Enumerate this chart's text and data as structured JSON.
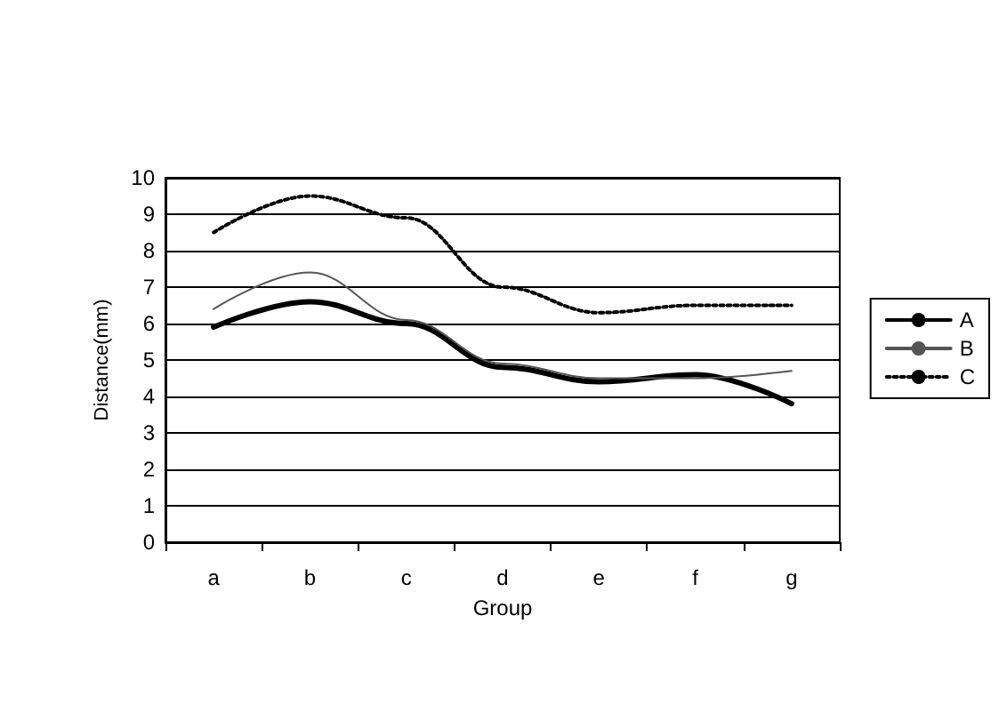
{
  "chart_data": {
    "type": "line",
    "xlabel": "Group",
    "ylabel": "Distance(mm)",
    "categories": [
      "a",
      "b",
      "c",
      "d",
      "e",
      "f",
      "g"
    ],
    "series": [
      {
        "name": "A",
        "color": "#000000",
        "values": [
          5.9,
          6.6,
          6.0,
          4.8,
          4.4,
          4.6,
          3.8
        ],
        "line_style": "solid"
      },
      {
        "name": "B",
        "color": "#555555",
        "values": [
          6.4,
          7.4,
          6.1,
          4.9,
          4.5,
          4.5,
          4.7
        ],
        "line_style": "solid"
      },
      {
        "name": "C",
        "color": "#000000",
        "values": [
          8.5,
          9.5,
          8.9,
          7.0,
          6.3,
          6.5,
          6.5
        ],
        "line_style": "dotted"
      }
    ],
    "ylim": [
      0,
      10
    ],
    "yticks": [
      0,
      1,
      2,
      3,
      4,
      5,
      6,
      7,
      8,
      9,
      10
    ],
    "grid": "y",
    "legend": "right",
    "marker": "none"
  }
}
